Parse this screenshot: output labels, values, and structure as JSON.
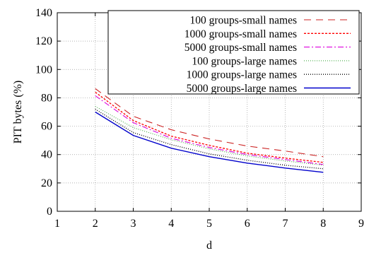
{
  "chart_data": {
    "type": "line",
    "xlabel": "d",
    "ylabel": "PIT bytes (%)",
    "xlim": [
      1,
      9
    ],
    "ylim": [
      0,
      140
    ],
    "xticks": [
      1,
      2,
      3,
      4,
      5,
      6,
      7,
      8,
      9
    ],
    "yticks": [
      0,
      20,
      40,
      60,
      80,
      100,
      120,
      140
    ],
    "grid": true,
    "legend_position": "top-right",
    "x": [
      2,
      3,
      4,
      5,
      6,
      7,
      8
    ],
    "series": [
      {
        "name": "100 groups-small names",
        "color": "#cc2222",
        "dash": "10,7",
        "width": 1.1,
        "values": [
          86.5,
          67,
          57.5,
          51,
          46,
          42.5,
          38.5
        ]
      },
      {
        "name": "1000 groups-small names",
        "color": "#ff0000",
        "dash": "3,2",
        "width": 1.3,
        "values": [
          84,
          64,
          53,
          46.5,
          41,
          37.5,
          34.5
        ]
      },
      {
        "name": "5000 groups-small names",
        "color": "#dd00dd",
        "dash": "8,3,2,3",
        "width": 1.1,
        "values": [
          81.5,
          62.5,
          51.5,
          45,
          40,
          36.5,
          33
        ]
      },
      {
        "name": "100 groups-large names",
        "color": "#44aa44",
        "dash": "1,2",
        "width": 1.1,
        "values": [
          74,
          59,
          50.5,
          44,
          39,
          35.5,
          32.5
        ]
      },
      {
        "name": "1000 groups-large names",
        "color": "#000000",
        "dash": "1,2",
        "width": 1.3,
        "values": [
          72,
          55.5,
          47,
          40.5,
          36,
          32.5,
          30
        ]
      },
      {
        "name": "5000 groups-large names",
        "color": "#0000cc",
        "dash": "",
        "width": 1.4,
        "values": [
          70,
          53.5,
          44.5,
          38.5,
          34,
          30.5,
          27.5
        ]
      }
    ]
  }
}
